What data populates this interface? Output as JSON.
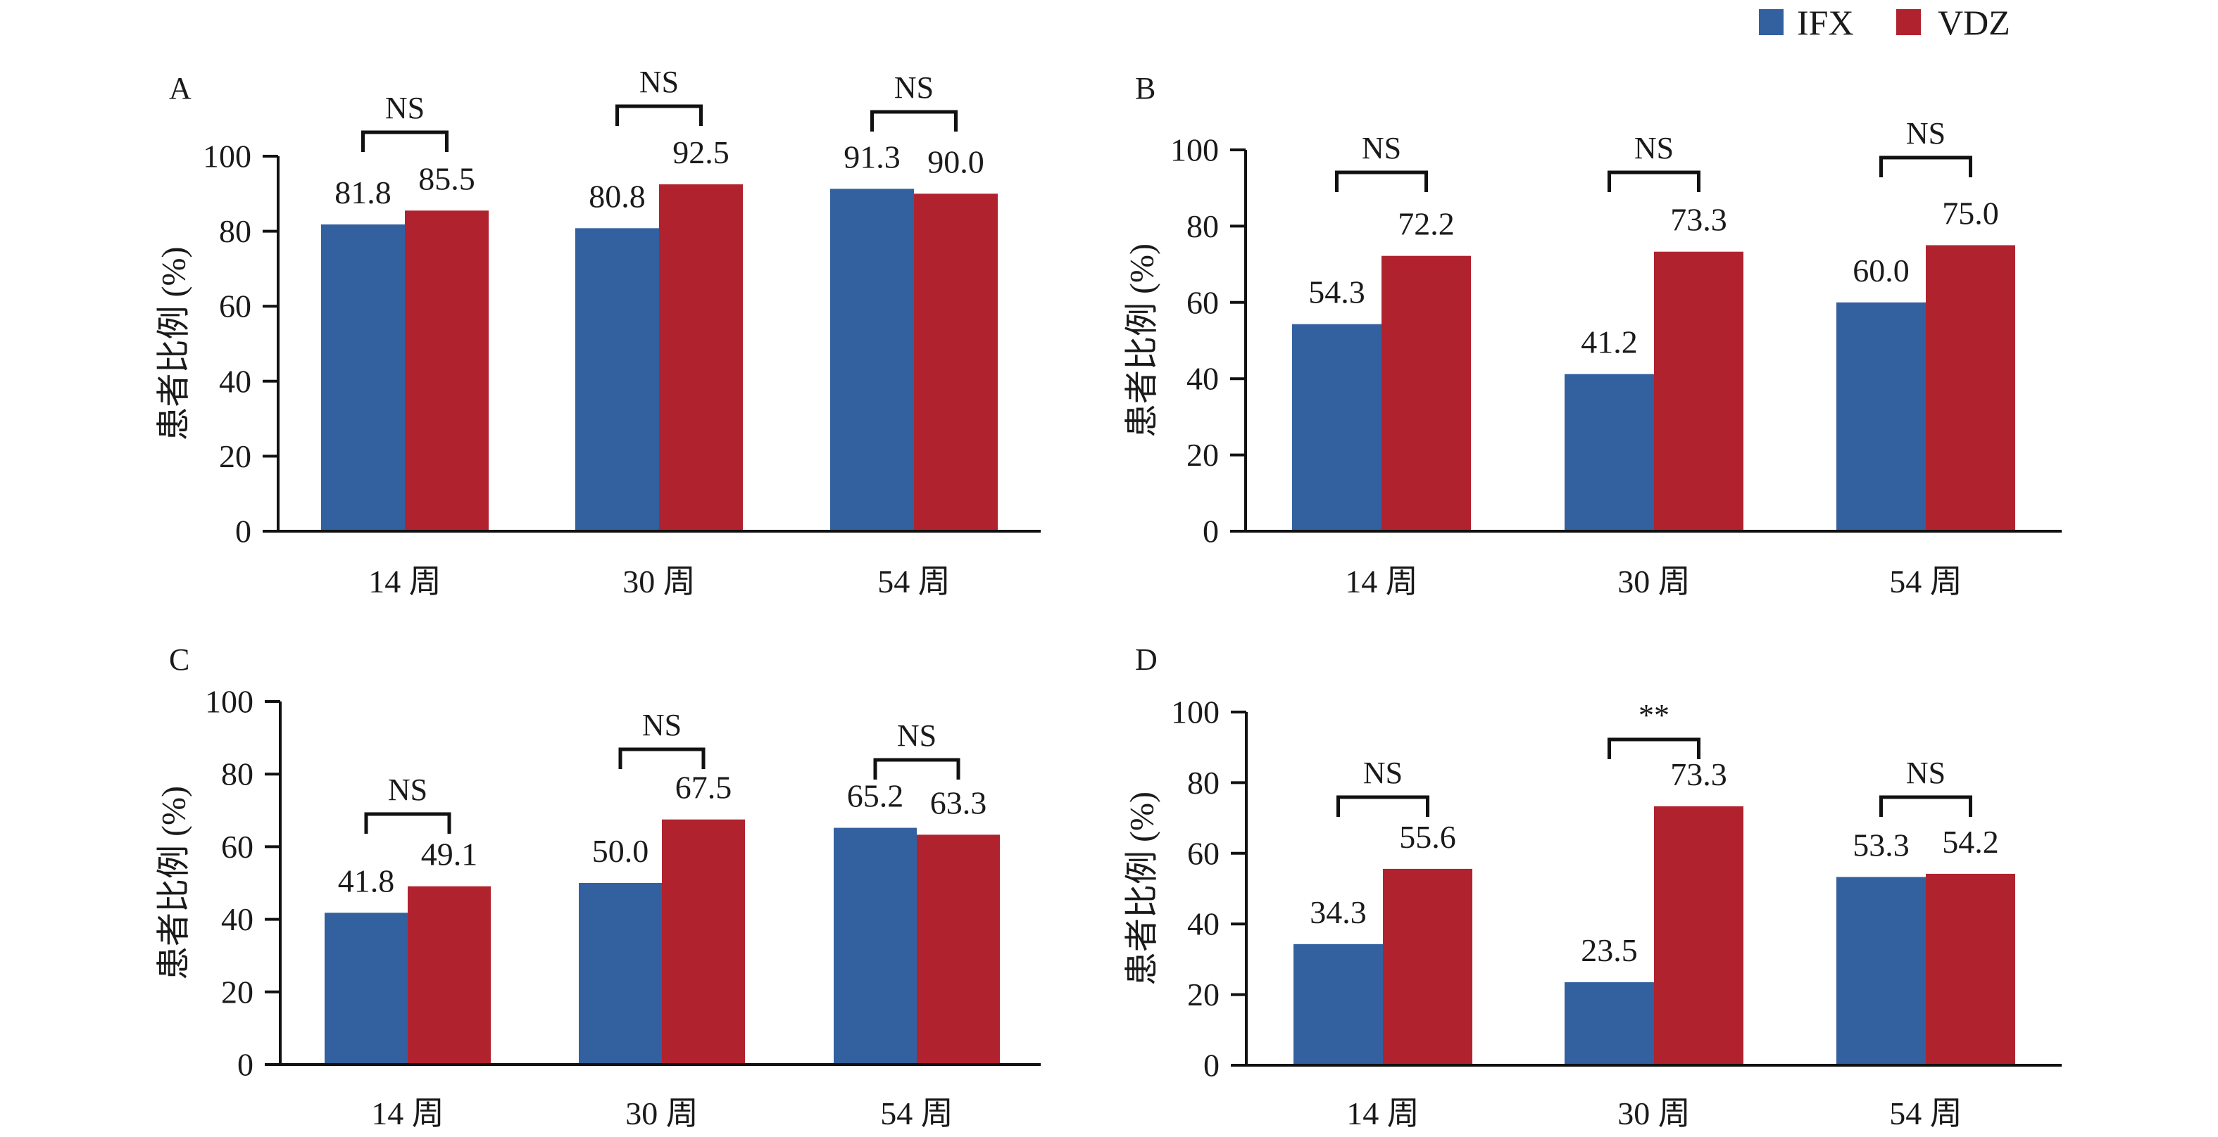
{
  "colors": {
    "IFX": "#33609e",
    "VDZ": "#b0232e"
  },
  "legend": [
    {
      "name": "IFX",
      "color": "#33609e"
    },
    {
      "name": "VDZ",
      "color": "#b0232e"
    }
  ],
  "chart_data": [
    {
      "type": "bar",
      "panel": "A",
      "title": "",
      "xlabel": "",
      "ylabel": "患者比例 (%)",
      "ylim": [
        0,
        100
      ],
      "yticks": [
        0,
        20,
        40,
        60,
        80,
        100
      ],
      "categories": [
        "14 周",
        "30 周",
        "54 周"
      ],
      "series": [
        {
          "name": "IFX",
          "values": [
            81.8,
            80.8,
            91.3
          ]
        },
        {
          "name": "VDZ",
          "values": [
            85.5,
            92.5,
            90.0
          ]
        }
      ],
      "data_labels": [
        [
          "81.8",
          "85.5"
        ],
        [
          "80.8",
          "92.5"
        ],
        [
          "91.3",
          "90.0"
        ]
      ],
      "significance": [
        "NS",
        "NS",
        "NS"
      ],
      "legend_position": "top-right",
      "grid": false
    },
    {
      "type": "bar",
      "panel": "B",
      "title": "",
      "xlabel": "",
      "ylabel": "患者比例 (%)",
      "ylim": [
        0,
        100
      ],
      "yticks": [
        0,
        20,
        40,
        60,
        80,
        100
      ],
      "categories": [
        "14 周",
        "30 周",
        "54 周"
      ],
      "series": [
        {
          "name": "IFX",
          "values": [
            54.3,
            41.2,
            60.0
          ]
        },
        {
          "name": "VDZ",
          "values": [
            72.2,
            73.3,
            75.0
          ]
        }
      ],
      "data_labels": [
        [
          "54.3",
          "72.2"
        ],
        [
          "41.2",
          "73.3"
        ],
        [
          "60.0",
          "75.0"
        ]
      ],
      "significance": [
        "NS",
        "NS",
        "NS"
      ],
      "grid": false
    },
    {
      "type": "bar",
      "panel": "C",
      "title": "",
      "xlabel": "",
      "ylabel": "患者比例 (%)",
      "ylim": [
        0,
        100
      ],
      "yticks": [
        0,
        20,
        40,
        60,
        80,
        100
      ],
      "categories": [
        "14 周",
        "30 周",
        "54 周"
      ],
      "series": [
        {
          "name": "IFX",
          "values": [
            41.8,
            50.0,
            65.2
          ]
        },
        {
          "name": "VDZ",
          "values": [
            49.1,
            67.5,
            63.3
          ]
        }
      ],
      "data_labels": [
        [
          "41.8",
          "49.1"
        ],
        [
          "50.0",
          "67.5"
        ],
        [
          "65.2",
          "63.3"
        ]
      ],
      "significance": [
        "NS",
        "NS",
        "NS"
      ],
      "grid": false
    },
    {
      "type": "bar",
      "panel": "D",
      "title": "",
      "xlabel": "",
      "ylabel": "患者比例 (%)",
      "ylim": [
        0,
        100
      ],
      "yticks": [
        0,
        20,
        40,
        60,
        80,
        100
      ],
      "categories": [
        "14 周",
        "30 周",
        "54 周"
      ],
      "series": [
        {
          "name": "IFX",
          "values": [
            34.3,
            23.5,
            53.3
          ]
        },
        {
          "name": "VDZ",
          "values": [
            55.6,
            73.3,
            54.2
          ]
        }
      ],
      "data_labels": [
        [
          "34.3",
          "55.6"
        ],
        [
          "23.5",
          "73.3"
        ],
        [
          "53.3",
          "54.2"
        ]
      ],
      "significance": [
        "NS",
        "**",
        "NS"
      ],
      "grid": false
    }
  ]
}
